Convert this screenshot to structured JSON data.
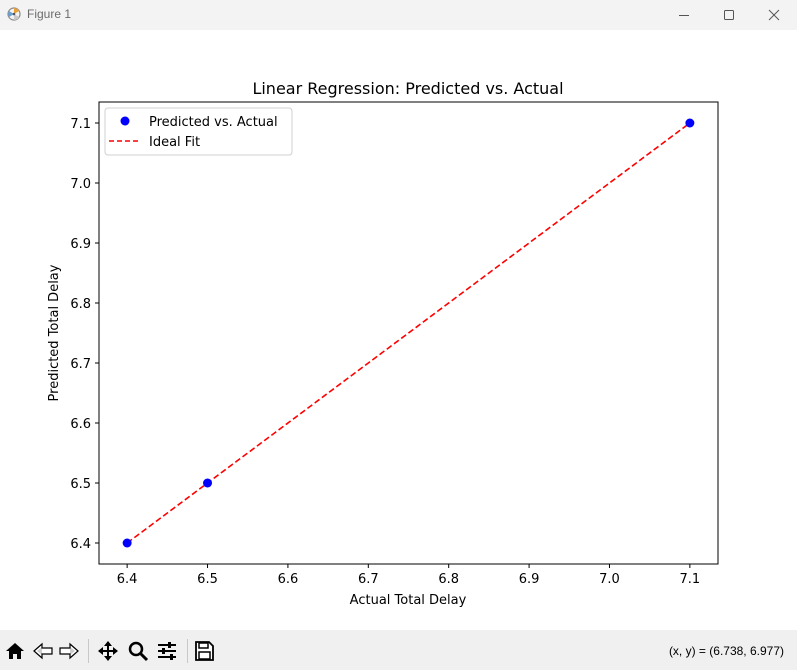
{
  "window": {
    "title": "Figure 1"
  },
  "colors": {
    "titlebar_bg": "#f3f3f3",
    "toolbar_bg": "#f0f0f0",
    "scatter": "#0000ff",
    "ideal_fit": "#ff0000"
  },
  "chart_data": {
    "type": "scatter",
    "title": "Linear Regression: Predicted vs. Actual",
    "xlabel": "Actual Total Delay",
    "ylabel": "Predicted Total Delay",
    "xlim": [
      6.365,
      7.135
    ],
    "ylim": [
      6.365,
      7.135
    ],
    "xticks": [
      6.4,
      6.5,
      6.6,
      6.7,
      6.8,
      6.9,
      7.0,
      7.1
    ],
    "yticks": [
      6.4,
      6.5,
      6.6,
      6.7,
      6.8,
      6.9,
      7.0,
      7.1
    ],
    "xtick_labels": [
      "6.4",
      "6.5",
      "6.6",
      "6.7",
      "6.8",
      "6.9",
      "7.0",
      "7.1"
    ],
    "ytick_labels": [
      "6.4",
      "6.5",
      "6.6",
      "6.7",
      "6.8",
      "6.9",
      "7.0",
      "7.1"
    ],
    "grid": false,
    "legend_position": "top-left",
    "series": [
      {
        "name": "Predicted vs. Actual",
        "kind": "scatter",
        "color": "#0000ff",
        "x": [
          6.4,
          6.5,
          7.1
        ],
        "y": [
          6.4,
          6.5,
          7.1
        ]
      },
      {
        "name": "Ideal Fit",
        "kind": "line",
        "style": "dashed",
        "color": "#ff0000",
        "x": [
          6.4,
          7.1
        ],
        "y": [
          6.4,
          7.1
        ]
      }
    ]
  },
  "toolbar": {
    "buttons": [
      {
        "name": "home-button",
        "icon": "home-icon"
      },
      {
        "name": "back-button",
        "icon": "arrow-left-icon"
      },
      {
        "name": "forward-button",
        "icon": "arrow-right-icon"
      },
      {
        "name": "pan-button",
        "icon": "move-icon"
      },
      {
        "name": "zoom-button",
        "icon": "magnifier-icon"
      },
      {
        "name": "configure-subplots-button",
        "icon": "sliders-icon"
      },
      {
        "name": "save-button",
        "icon": "floppy-disk-icon"
      }
    ],
    "coordinates": "(x, y) = (6.738, 6.977)"
  }
}
